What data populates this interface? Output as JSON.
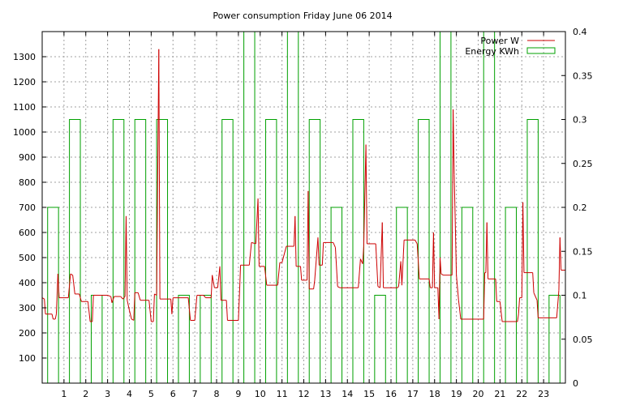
{
  "chart_data": {
    "type": "line",
    "title": "Power consumption Friday June 06 2014",
    "xlabel": "",
    "ylabel": "",
    "y2label": "",
    "x_range": [
      0,
      24
    ],
    "y_range": [
      0,
      1400
    ],
    "y2_range": [
      0,
      0.4
    ],
    "x_ticks": [
      1,
      2,
      3,
      4,
      5,
      6,
      7,
      8,
      9,
      10,
      11,
      12,
      13,
      14,
      15,
      16,
      17,
      18,
      19,
      20,
      21,
      22,
      23
    ],
    "y_ticks": [
      100,
      200,
      300,
      400,
      500,
      600,
      700,
      800,
      900,
      1000,
      1100,
      1200,
      1300
    ],
    "y2_ticks": [
      0,
      0.05,
      0.1,
      0.15,
      0.2,
      0.25,
      0.3,
      0.35,
      0.4
    ],
    "grid": true,
    "legend_position": "top-right",
    "series": [
      {
        "name": "Power W",
        "axis": "left",
        "color": "#cc0000",
        "style": "line",
        "points": [
          [
            0,
            340
          ],
          [
            0.1,
            335
          ],
          [
            0.15,
            275
          ],
          [
            0.45,
            275
          ],
          [
            0.5,
            255
          ],
          [
            0.6,
            255
          ],
          [
            0.65,
            275
          ],
          [
            0.72,
            435
          ],
          [
            0.78,
            340
          ],
          [
            1.2,
            340
          ],
          [
            1.3,
            435
          ],
          [
            1.4,
            430
          ],
          [
            1.5,
            355
          ],
          [
            1.7,
            355
          ],
          [
            1.8,
            325
          ],
          [
            2.1,
            325
          ],
          [
            2.2,
            245
          ],
          [
            2.3,
            245
          ],
          [
            2.35,
            350
          ],
          [
            3.0,
            350
          ],
          [
            3.15,
            345
          ],
          [
            3.2,
            320
          ],
          [
            3.3,
            345
          ],
          [
            3.6,
            345
          ],
          [
            3.7,
            335
          ],
          [
            3.8,
            345
          ],
          [
            3.85,
            665
          ],
          [
            3.9,
            330
          ],
          [
            4.0,
            290
          ],
          [
            4.1,
            255
          ],
          [
            4.2,
            250
          ],
          [
            4.25,
            360
          ],
          [
            4.4,
            360
          ],
          [
            4.5,
            330
          ],
          [
            4.9,
            330
          ],
          [
            5.0,
            245
          ],
          [
            5.1,
            245
          ],
          [
            5.15,
            355
          ],
          [
            5.25,
            350
          ],
          [
            5.35,
            1330
          ],
          [
            5.4,
            335
          ],
          [
            5.9,
            335
          ],
          [
            5.95,
            275
          ],
          [
            6.0,
            340
          ],
          [
            6.7,
            340
          ],
          [
            6.8,
            250
          ],
          [
            7.0,
            250
          ],
          [
            7.1,
            350
          ],
          [
            7.4,
            350
          ],
          [
            7.5,
            340
          ],
          [
            7.75,
            340
          ],
          [
            7.8,
            430
          ],
          [
            7.9,
            380
          ],
          [
            8.05,
            380
          ],
          [
            8.15,
            465
          ],
          [
            8.2,
            330
          ],
          [
            8.45,
            330
          ],
          [
            8.5,
            250
          ],
          [
            9.0,
            250
          ],
          [
            9.05,
            355
          ],
          [
            9.1,
            470
          ],
          [
            9.5,
            470
          ],
          [
            9.6,
            560
          ],
          [
            9.8,
            555
          ],
          [
            9.9,
            735
          ],
          [
            9.95,
            465
          ],
          [
            10.2,
            465
          ],
          [
            10.3,
            390
          ],
          [
            10.8,
            390
          ],
          [
            10.9,
            480
          ],
          [
            11.0,
            480
          ],
          [
            11.2,
            545
          ],
          [
            11.55,
            545
          ],
          [
            11.6,
            665
          ],
          [
            11.65,
            465
          ],
          [
            11.85,
            465
          ],
          [
            11.9,
            410
          ],
          [
            12.15,
            410
          ],
          [
            12.2,
            765
          ],
          [
            12.25,
            375
          ],
          [
            12.45,
            375
          ],
          [
            12.5,
            410
          ],
          [
            12.65,
            580
          ],
          [
            12.7,
            470
          ],
          [
            12.85,
            470
          ],
          [
            12.9,
            560
          ],
          [
            13.35,
            560
          ],
          [
            13.45,
            540
          ],
          [
            13.55,
            385
          ],
          [
            13.65,
            380
          ],
          [
            14.5,
            380
          ],
          [
            14.6,
            495
          ],
          [
            14.7,
            475
          ],
          [
            14.75,
            545
          ],
          [
            14.85,
            950
          ],
          [
            14.9,
            555
          ],
          [
            15.3,
            555
          ],
          [
            15.4,
            385
          ],
          [
            15.5,
            380
          ],
          [
            15.6,
            640
          ],
          [
            15.65,
            380
          ],
          [
            16.3,
            380
          ],
          [
            16.35,
            385
          ],
          [
            16.45,
            485
          ],
          [
            16.5,
            390
          ],
          [
            16.6,
            570
          ],
          [
            17.1,
            570
          ],
          [
            17.2,
            555
          ],
          [
            17.3,
            415
          ],
          [
            17.75,
            415
          ],
          [
            17.8,
            380
          ],
          [
            17.9,
            380
          ],
          [
            17.95,
            600
          ],
          [
            18.0,
            380
          ],
          [
            18.15,
            380
          ],
          [
            18.2,
            255
          ],
          [
            18.25,
            500
          ],
          [
            18.3,
            435
          ],
          [
            18.4,
            430
          ],
          [
            18.8,
            430
          ],
          [
            18.85,
            1090
          ],
          [
            18.9,
            830
          ],
          [
            19.0,
            430
          ],
          [
            19.1,
            330
          ],
          [
            19.2,
            255
          ],
          [
            20.25,
            255
          ],
          [
            20.3,
            440
          ],
          [
            20.35,
            440
          ],
          [
            20.4,
            640
          ],
          [
            20.45,
            415
          ],
          [
            20.8,
            415
          ],
          [
            20.85,
            325
          ],
          [
            21.0,
            325
          ],
          [
            21.1,
            245
          ],
          [
            21.8,
            245
          ],
          [
            21.85,
            275
          ],
          [
            21.9,
            340
          ],
          [
            22.0,
            340
          ],
          [
            22.05,
            720
          ],
          [
            22.1,
            440
          ],
          [
            22.5,
            440
          ],
          [
            22.55,
            360
          ],
          [
            22.7,
            330
          ],
          [
            22.75,
            260
          ],
          [
            23.6,
            260
          ],
          [
            23.7,
            370
          ],
          [
            23.75,
            580
          ],
          [
            23.8,
            450
          ],
          [
            24,
            450
          ]
        ]
      },
      {
        "name": "Energy KWh",
        "axis": "right",
        "color": "#00a000",
        "style": "boxes",
        "box_width": 0.5,
        "bars": [
          {
            "hour": 0,
            "value": 0.2
          },
          {
            "hour": 1,
            "value": 0.3
          },
          {
            "hour": 2,
            "value": 0.1
          },
          {
            "hour": 3,
            "value": 0.3
          },
          {
            "hour": 4,
            "value": 0.3
          },
          {
            "hour": 5,
            "value": 0.3
          },
          {
            "hour": 6,
            "value": 0.1
          },
          {
            "hour": 7,
            "value": 0.1
          },
          {
            "hour": 8,
            "value": 0.3
          },
          {
            "hour": 9,
            "value": 0.4
          },
          {
            "hour": 10,
            "value": 0.3
          },
          {
            "hour": 11,
            "value": 0.4
          },
          {
            "hour": 12,
            "value": 0.3
          },
          {
            "hour": 13,
            "value": 0.2
          },
          {
            "hour": 14,
            "value": 0.3
          },
          {
            "hour": 15,
            "value": 0.1
          },
          {
            "hour": 16,
            "value": 0.2
          },
          {
            "hour": 17,
            "value": 0.3
          },
          {
            "hour": 18,
            "value": 0.4
          },
          {
            "hour": 19,
            "value": 0.2
          },
          {
            "hour": 20,
            "value": 0.4
          },
          {
            "hour": 21,
            "value": 0.2
          },
          {
            "hour": 22,
            "value": 0.3
          },
          {
            "hour": 23,
            "value": 0.1
          }
        ]
      }
    ]
  }
}
